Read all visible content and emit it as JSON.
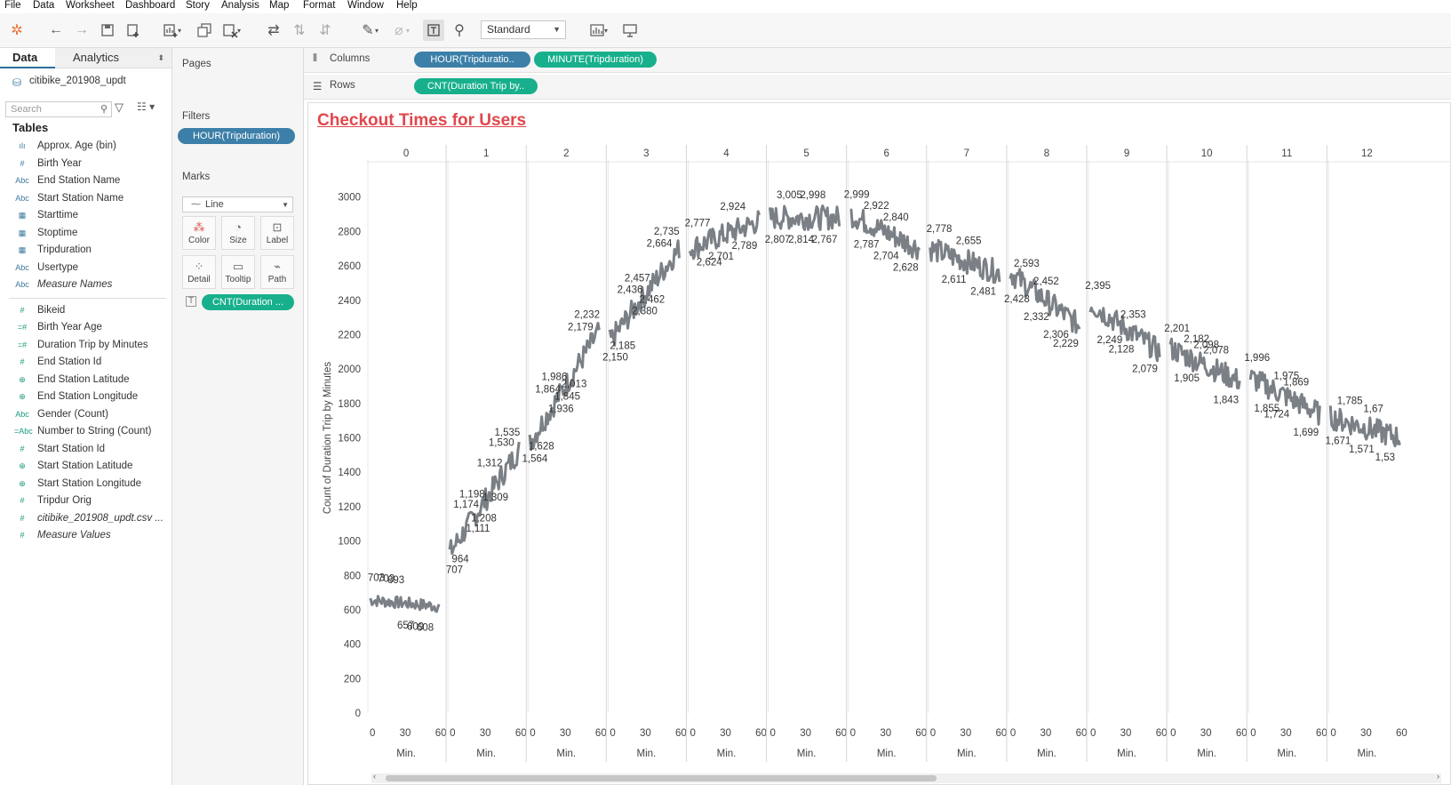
{
  "menu": [
    "File",
    "Data",
    "Worksheet",
    "Dashboard",
    "Story",
    "Analysis",
    "Map",
    "Format",
    "Window",
    "Help"
  ],
  "toolbar": {
    "mark_standard": "Standard"
  },
  "left_pane": {
    "tab_data": "Data",
    "tab_analytics": "Analytics",
    "datasource": "citibike_201908_updt",
    "search_placeholder": "Search",
    "tables_heading": "Tables",
    "dimensions": [
      {
        "type": "histogram",
        "name": "Approx. Age (bin)"
      },
      {
        "type": "#",
        "name": "Birth Year"
      },
      {
        "type": "Abc",
        "name": "End Station Name"
      },
      {
        "type": "Abc",
        "name": "Start Station Name"
      },
      {
        "type": "date",
        "name": "Starttime"
      },
      {
        "type": "date",
        "name": "Stoptime"
      },
      {
        "type": "date",
        "name": "Tripduration"
      },
      {
        "type": "Abc",
        "name": "Usertype"
      },
      {
        "type": "Abc",
        "name": "Measure Names",
        "italic": true
      }
    ],
    "measures": [
      {
        "type": "#",
        "name": "Bikeid"
      },
      {
        "type": "=#",
        "name": "Birth Year Age"
      },
      {
        "type": "=#",
        "name": "Duration Trip by Minutes"
      },
      {
        "type": "#",
        "name": "End Station Id"
      },
      {
        "type": "globe",
        "name": "End Station Latitude"
      },
      {
        "type": "globe",
        "name": "End Station Longitude"
      },
      {
        "type": "Abc",
        "name": "Gender (Count)"
      },
      {
        "type": "=Abc",
        "name": "Number to String (Count)"
      },
      {
        "type": "#",
        "name": "Start Station Id"
      },
      {
        "type": "globe",
        "name": "Start Station Latitude"
      },
      {
        "type": "globe",
        "name": "Start Station Longitude"
      },
      {
        "type": "#",
        "name": "Tripdur Orig"
      },
      {
        "type": "#",
        "name": "citibike_201908_updt.csv ...",
        "italic": true
      },
      {
        "type": "#",
        "name": "Measure Values",
        "italic": true
      }
    ]
  },
  "cards": {
    "pages": "Pages",
    "filters": "Filters",
    "filter_pill": "HOUR(Tripduration)",
    "marks": "Marks",
    "mark_type": "Line",
    "buttons": [
      "Color",
      "Size",
      "Label",
      "Detail",
      "Tooltip",
      "Path"
    ],
    "mark_pill": "CNT(Duration ..."
  },
  "shelves": {
    "columns_label": "Columns",
    "rows_label": "Rows",
    "columns_pills": [
      "HOUR(Tripduratio..",
      "MINUTE(Tripduration)"
    ],
    "rows_pill": "CNT(Duration Trip by.."
  },
  "chart_data": {
    "type": "line",
    "title": "Checkout Times for Users",
    "ylabel": "Count of Duration Trip by Minutes",
    "xlabel": "Min.",
    "ylim": [
      0,
      3000
    ],
    "y_ticks": [
      0,
      200,
      400,
      600,
      800,
      1000,
      1200,
      1400,
      1600,
      1800,
      2000,
      2200,
      2400,
      2600,
      2800,
      3000
    ],
    "x_ticks": [
      0,
      30,
      60
    ],
    "panes": [
      {
        "hour": "0",
        "level_start": 657,
        "level_end": 620,
        "labels": [
          [
            "703",
            "hi"
          ],
          [
            "703",
            "hi"
          ],
          [
            "693",
            "hi"
          ],
          [
            "657",
            "lo"
          ],
          [
            "609",
            "lo"
          ],
          [
            "608",
            "lo"
          ]
        ]
      },
      {
        "hour": "1",
        "level_start": 930,
        "level_end": 1530,
        "labels": [
          [
            "707",
            "lo"
          ],
          [
            "964",
            "lo"
          ],
          [
            "1,174",
            "hi"
          ],
          [
            "1,198",
            "hi"
          ],
          [
            "1,111",
            "lo"
          ],
          [
            "1,208",
            "lo"
          ],
          [
            "1,312",
            "hi"
          ],
          [
            "1,309",
            "lo"
          ],
          [
            "1,530",
            "hi"
          ],
          [
            "1,535",
            "hi"
          ]
        ]
      },
      {
        "hour": "2",
        "level_start": 1570,
        "level_end": 2220,
        "labels": [
          [
            "1,564",
            "lo"
          ],
          [
            "1,628",
            "lo"
          ],
          [
            "1,864",
            "hi"
          ],
          [
            "1,986",
            "hi"
          ],
          [
            "1,936",
            "lo"
          ],
          [
            "1,845",
            "lo"
          ],
          [
            "2,013",
            "lo"
          ],
          [
            "2,179",
            "hi"
          ],
          [
            "2,232",
            "hi"
          ]
        ]
      },
      {
        "hour": "3",
        "level_start": 2160,
        "level_end": 2700,
        "labels": [
          [
            "2,150",
            "lo"
          ],
          [
            "2,185",
            "lo"
          ],
          [
            "2,436",
            "hi"
          ],
          [
            "2,457",
            "hi"
          ],
          [
            "2,380",
            "lo"
          ],
          [
            "2,462",
            "lo"
          ],
          [
            "2,664",
            "hi"
          ],
          [
            "2,735",
            "hi"
          ]
        ]
      },
      {
        "hour": "4",
        "level_start": 2700,
        "level_end": 2860,
        "labels": [
          [
            "2,777",
            "hi"
          ],
          [
            "2,624",
            "lo"
          ],
          [
            "2,701",
            "lo"
          ],
          [
            "2,924",
            "hi"
          ],
          [
            "2,789",
            "lo"
          ]
        ]
      },
      {
        "hour": "5",
        "level_start": 2880,
        "level_end": 2880,
        "labels": [
          [
            "2,807",
            "lo"
          ],
          [
            "3,005",
            "hi"
          ],
          [
            "2,814",
            "lo"
          ],
          [
            "2,998",
            "hi"
          ],
          [
            "2,767",
            "lo"
          ]
        ]
      },
      {
        "hour": "6",
        "level_start": 2900,
        "level_end": 2700,
        "labels": [
          [
            "2,999",
            "hi"
          ],
          [
            "2,787",
            "lo"
          ],
          [
            "2,922",
            "hi"
          ],
          [
            "2,704",
            "lo"
          ],
          [
            "2,840",
            "hi"
          ],
          [
            "2,628",
            "lo"
          ]
        ]
      },
      {
        "hour": "7",
        "level_start": 2700,
        "level_end": 2560,
        "labels": [
          [
            "2,778",
            "hi"
          ],
          [
            "2,611",
            "lo"
          ],
          [
            "2,655",
            "hi"
          ],
          [
            "2,481",
            "lo"
          ]
        ]
      },
      {
        "hour": "8",
        "level_start": 2560,
        "level_end": 2250,
        "labels": [
          [
            "2,428",
            "lo"
          ],
          [
            "2,593",
            "hi"
          ],
          [
            "2,332",
            "lo"
          ],
          [
            "2,452",
            "hi"
          ],
          [
            "2,306",
            "lo"
          ],
          [
            "2,229",
            "lo"
          ]
        ]
      },
      {
        "hour": "9",
        "level_start": 2380,
        "level_end": 2100,
        "labels": [
          [
            "2,395",
            "hi"
          ],
          [
            "2,249",
            "lo"
          ],
          [
            "2,128",
            "lo"
          ],
          [
            "2,353",
            "hi"
          ],
          [
            "2,079",
            "lo"
          ]
        ]
      },
      {
        "hour": "10",
        "level_start": 2120,
        "level_end": 1930,
        "labels": [
          [
            "2,201",
            "hi"
          ],
          [
            "1,905",
            "lo"
          ],
          [
            "2,182",
            "hi"
          ],
          [
            "2,098",
            "hi"
          ],
          [
            "2,078",
            "hi"
          ],
          [
            "1,843",
            "lo"
          ]
        ]
      },
      {
        "hour": "11",
        "level_start": 1950,
        "level_end": 1740,
        "labels": [
          [
            "1,996",
            "hi"
          ],
          [
            "1,855",
            "lo"
          ],
          [
            "1,724",
            "lo"
          ],
          [
            "1,975",
            "hi"
          ],
          [
            "1,869",
            "hi"
          ],
          [
            "1,699",
            "lo"
          ]
        ]
      },
      {
        "hour": "12",
        "level_start": 1720,
        "level_end": 1600,
        "labels": [
          [
            "1,671",
            "lo"
          ],
          [
            "1,785",
            "hi"
          ],
          [
            "1,571",
            "lo"
          ],
          [
            "1,67",
            "hi"
          ],
          [
            "1,53",
            "lo"
          ]
        ]
      }
    ]
  }
}
